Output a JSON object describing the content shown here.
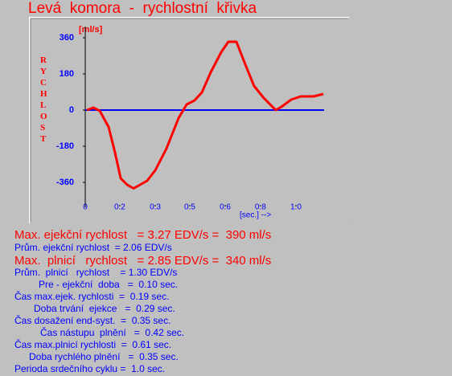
{
  "chart_data": {
    "type": "line",
    "title": "Levá  komora  -  rychlostní  křivka",
    "y_label": "RYCHLOST",
    "y_unit": "[ml/s]",
    "x_label": "[sec.] -->",
    "xlim": [
      0,
      1.1
    ],
    "ylim": [
      -484,
      416
    ],
    "xticks": [
      {
        "value": 0,
        "label": "0"
      },
      {
        "value": 0.145,
        "label": "0.2"
      },
      {
        "value": 0.294,
        "label": "0.3"
      },
      {
        "value": 0.439,
        "label": "0.5"
      },
      {
        "value": 0.588,
        "label": "0.6"
      },
      {
        "value": 0.736,
        "label": "0.8"
      },
      {
        "value": 0.885,
        "label": "1.0"
      }
    ],
    "yticks": [
      360,
      180,
      0,
      -180,
      -360
    ],
    "zero_line_color": "#0000ff",
    "x": [
      0.007,
      0.034,
      0.061,
      0.098,
      0.125,
      0.149,
      0.176,
      0.203,
      0.23,
      0.26,
      0.294,
      0.341,
      0.392,
      0.426,
      0.459,
      0.49,
      0.527,
      0.571,
      0.601,
      0.635,
      0.672,
      0.709,
      0.75,
      0.8,
      0.824,
      0.865,
      0.905,
      0.959,
      1.0
    ],
    "series": [
      {
        "name": "rychlost",
        "color": "#ff0000",
        "values": [
          0,
          12,
          -4,
          -84,
          -212,
          -340,
          -372,
          -390,
          -372,
          -352,
          -300,
          -192,
          -40,
          28,
          48,
          88,
          188,
          288,
          340,
          340,
          228,
          120,
          60,
          0,
          16,
          52,
          68,
          68,
          80
        ]
      }
    ]
  },
  "report": {
    "lines": [
      "Max. ejekční rychlost   = 3.27 EDV/s =  390 ml/s",
      "Prům. ejekční rychlost  = 2.06 EDV/s",
      "Max.  plnicí   rychlost   = 2.85 EDV/s =  340 ml/s",
      "Prům.  plnicí   rychlost    = 1.30 EDV/s",
      "Pre - ejekční  doba   =  0.10 sec.",
      "Čas max.ejek. rychlosti  =  0.19 sec.",
      "Doba trvání  ejekce   =  0.29 sec.",
      "Čas dosažení end-syst.  =  0.35 sec.",
      "Čas nástupu  plnění   =  0.42 sec.",
      "Čas max.plnicí rychlosti  =  0.61 sec.",
      "Doba rychlého plnění   =  0.35 sec.",
      "Perioda srdečního cyklu =  1.0 sec."
    ]
  }
}
